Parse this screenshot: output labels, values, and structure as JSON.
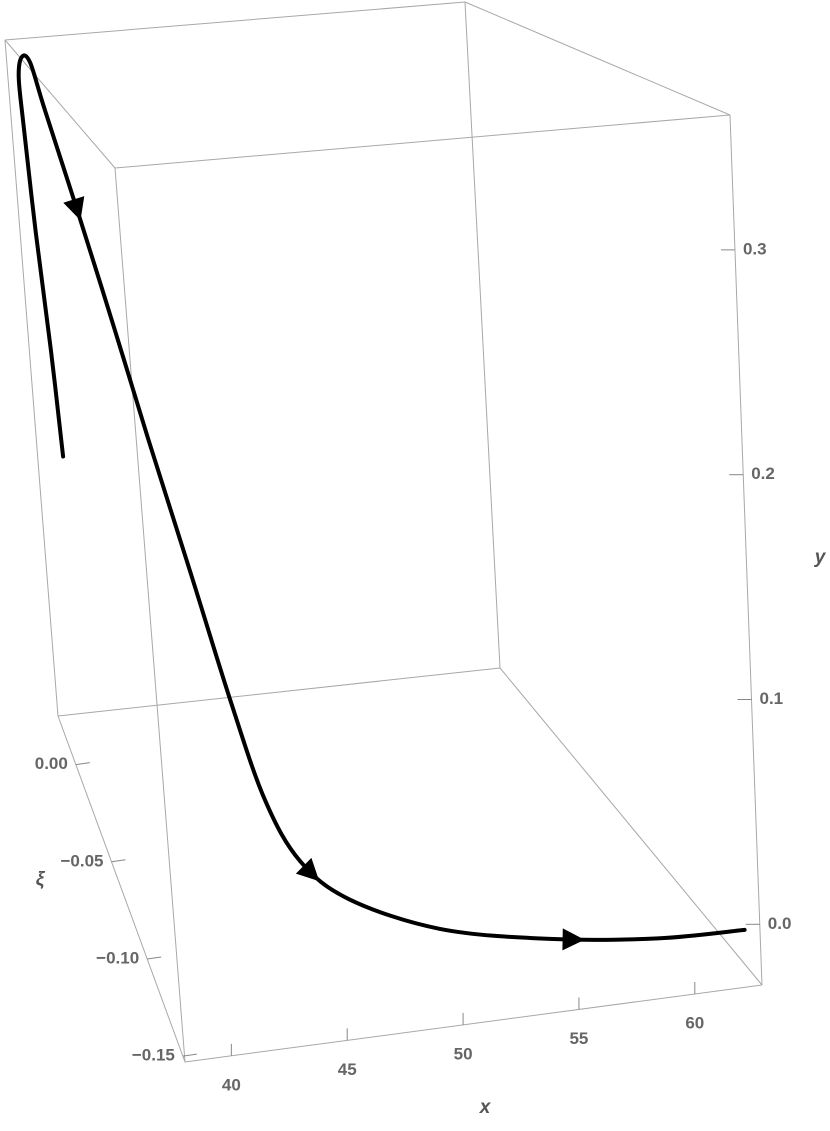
{
  "chart_data": {
    "type": "line3d",
    "x_label": "x",
    "y_label": "y",
    "z_label": "ξ",
    "color": "#000000",
    "x": [
      39.37,
      39.15,
      38.82,
      38.6,
      38.55,
      38.8,
      38.97,
      39.27,
      40.09,
      40.84,
      41.49,
      42.43,
      43.28,
      44.13,
      45.15,
      46.81,
      50.3,
      54.68,
      59.02,
      62.48
    ],
    "y": [
      0.121,
      0.182,
      0.25,
      0.314,
      0.339,
      0.35,
      0.35,
      0.327,
      0.275,
      0.226,
      0.18,
      0.125,
      0.074,
      0.035,
      0.014,
      0.004,
      -0.005,
      -0.008,
      -0.008,
      -0.005
    ],
    "z": [
      0.024,
      0.024,
      0.024,
      0.024,
      0.024,
      0.024,
      0.016,
      0.007,
      -0.011,
      -0.028,
      -0.046,
      -0.064,
      -0.082,
      -0.094,
      -0.105,
      -0.117,
      -0.128,
      -0.137,
      -0.144,
      -0.149
    ],
    "xlim": [
      38,
      62.9
    ],
    "ylim": [
      -0.027,
      0.36
    ],
    "zlim": [
      -0.153,
      0.025
    ],
    "xticks": [
      40,
      45,
      50,
      55,
      60
    ],
    "yticks": [
      {
        "value": 0,
        "label": "0.0"
      },
      0.1,
      0.2,
      0.3
    ],
    "zticks": [
      {
        "value": 0,
        "label": "0.00"
      },
      {
        "value": -0.05,
        "label": "−0.05"
      },
      {
        "value": -0.1,
        "label": "−0.10"
      },
      {
        "value": -0.15,
        "label": "−0.15"
      }
    ]
  }
}
